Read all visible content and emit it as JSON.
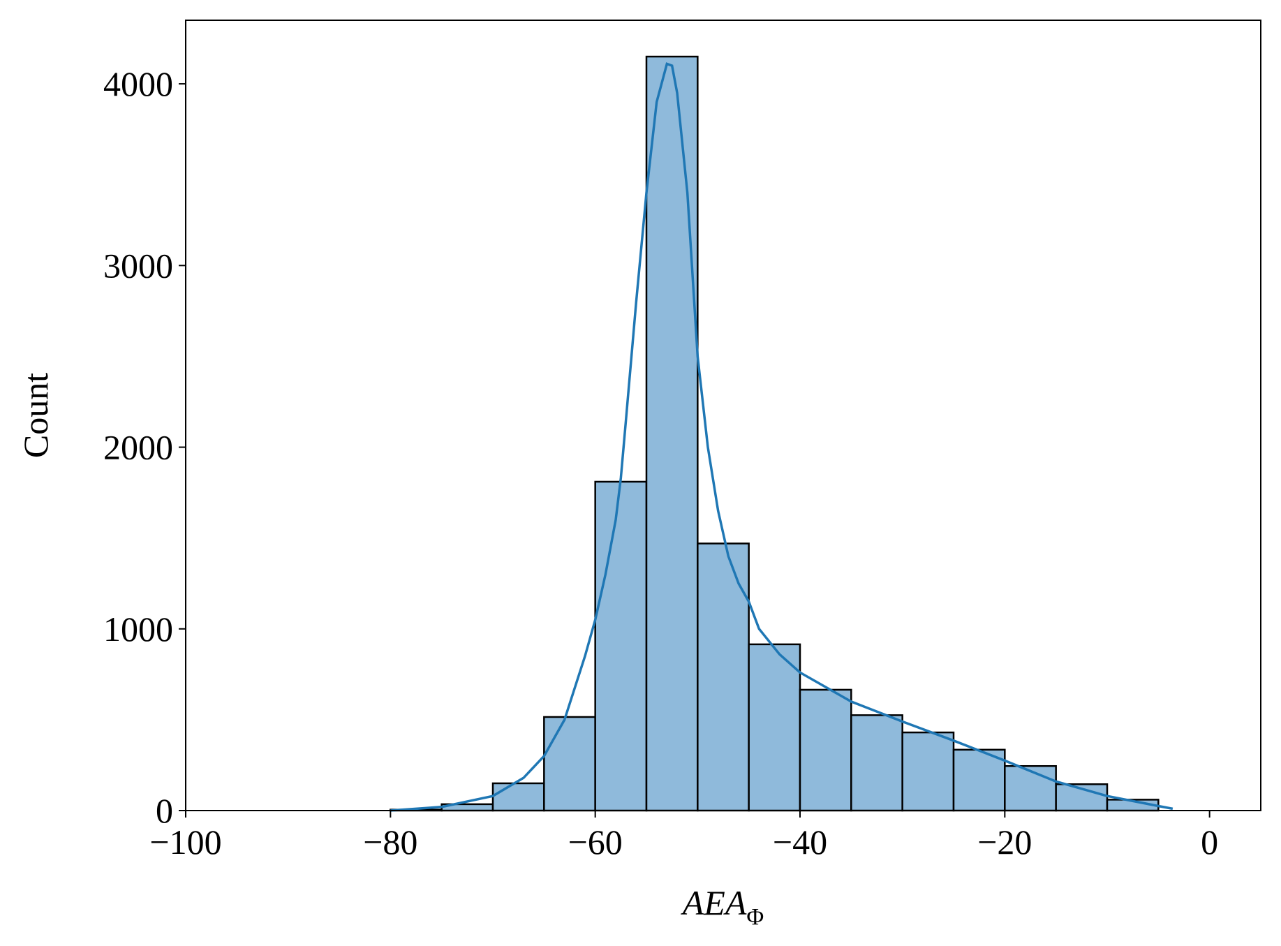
{
  "chart_data": {
    "type": "histogram",
    "xlabel": {
      "main": "AEA",
      "sub": "Φ"
    },
    "ylabel": "Count",
    "bins": [
      -80,
      -75,
      -70,
      -65,
      -60,
      -55,
      -50,
      -45,
      -40,
      -35,
      -30,
      -25,
      -20,
      -15,
      -10,
      -5
    ],
    "counts": [
      5,
      35,
      150,
      515,
      1810,
      4150,
      1470,
      915,
      665,
      525,
      430,
      335,
      245,
      145,
      60
    ],
    "color": "#8fbadb",
    "edgecolor": "#000000",
    "kde": {
      "color": "#1f77b4",
      "x": [
        -80,
        -75,
        -70,
        -67,
        -65,
        -63,
        -61,
        -60,
        -59,
        -58,
        -57.5,
        -57,
        -56,
        -55,
        -54,
        -53,
        -52.5,
        -52,
        -51,
        -50,
        -49,
        -48,
        -47,
        -46,
        -45,
        -44,
        -42,
        -40,
        -35,
        -30,
        -25,
        -20,
        -15,
        -10,
        -5,
        -3.6
      ],
      "values": [
        0,
        20,
        80,
        180,
        300,
        500,
        850,
        1050,
        1300,
        1600,
        1830,
        2150,
        2800,
        3400,
        3900,
        4110,
        4100,
        3950,
        3400,
        2500,
        2000,
        1650,
        1400,
        1250,
        1150,
        1000,
        860,
        760,
        600,
        490,
        385,
        275,
        160,
        80,
        25,
        10
      ]
    },
    "xlim": [
      -100,
      5
    ],
    "ylim": [
      0,
      4350
    ],
    "xticks": [
      {
        "value": -100,
        "label": "−100"
      },
      {
        "value": -80,
        "label": "−80"
      },
      {
        "value": -60,
        "label": "−60"
      },
      {
        "value": -40,
        "label": "−40"
      },
      {
        "value": -20,
        "label": "−20"
      },
      0
    ],
    "yticks": [
      0,
      1000,
      2000,
      3000,
      4000
    ]
  }
}
